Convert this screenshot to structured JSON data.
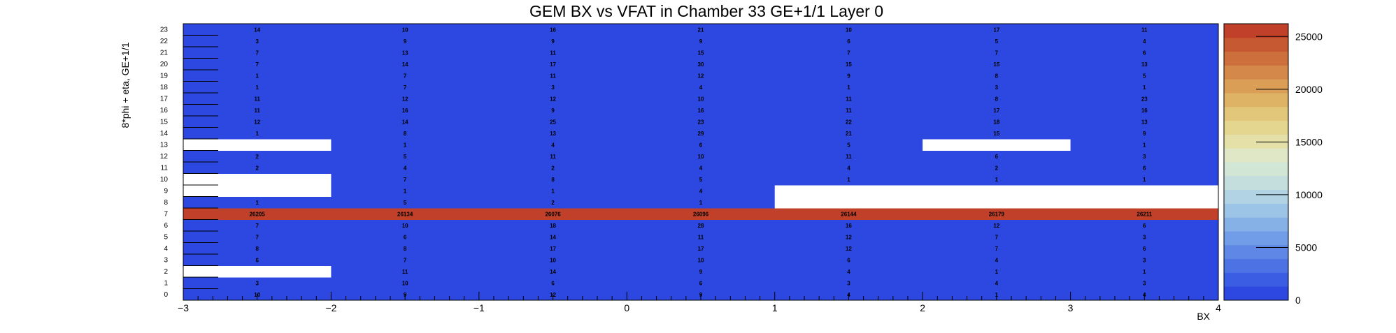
{
  "chart_data": {
    "type": "heatmap",
    "title": "GEM BX vs VFAT in Chamber 33 GE+1/1 Layer 0",
    "xlabel": "BX",
    "ylabel": "8*phi + eta, GE+1/1",
    "xlim": [
      -3,
      4
    ],
    "ylim": [
      0,
      24
    ],
    "x_ticks": [
      -3,
      -2,
      -1,
      0,
      1,
      2,
      3,
      4
    ],
    "x_tick_labels": [
      "−3",
      "−2",
      "−1",
      "0",
      "1",
      "2",
      "3",
      "4"
    ],
    "y_tick_labels": [
      "0",
      "1",
      "2",
      "3",
      "4",
      "5",
      "6",
      "7",
      "8",
      "9",
      "10",
      "11",
      "12",
      "13",
      "14",
      "15",
      "16",
      "17",
      "18",
      "19",
      "20",
      "21",
      "22",
      "23"
    ],
    "zlim": [
      0,
      26211
    ],
    "colorbar_ticks": [
      0,
      5000,
      10000,
      15000,
      20000,
      25000
    ],
    "colorbar_tick_labels": [
      "0",
      "5000",
      "10000",
      "15000",
      "20000",
      "25000"
    ],
    "x_bins": [
      -3,
      -2,
      -1,
      0,
      1,
      2,
      3
    ],
    "grid": false,
    "cells": [
      [
        10,
        9,
        12,
        9,
        4,
        1,
        4
      ],
      [
        3,
        10,
        6,
        6,
        3,
        4,
        3
      ],
      [
        null,
        11,
        14,
        9,
        4,
        1,
        1
      ],
      [
        6,
        7,
        10,
        10,
        6,
        4,
        3
      ],
      [
        8,
        8,
        17,
        17,
        12,
        7,
        6
      ],
      [
        7,
        6,
        14,
        11,
        12,
        7,
        3
      ],
      [
        7,
        10,
        18,
        28,
        16,
        12,
        6
      ],
      [
        26205,
        26134,
        26076,
        26096,
        26144,
        26179,
        26211
      ],
      [
        1,
        5,
        2,
        1,
        null,
        null,
        null
      ],
      [
        null,
        1,
        1,
        4,
        null,
        null,
        null
      ],
      [
        null,
        7,
        8,
        5,
        1,
        1,
        1
      ],
      [
        2,
        4,
        2,
        4,
        4,
        2,
        6
      ],
      [
        2,
        5,
        11,
        10,
        11,
        6,
        3
      ],
      [
        null,
        1,
        4,
        6,
        5,
        null,
        1
      ],
      [
        1,
        8,
        13,
        29,
        21,
        15,
        9
      ],
      [
        12,
        14,
        25,
        23,
        22,
        18,
        13
      ],
      [
        11,
        16,
        9,
        16,
        11,
        17,
        16
      ],
      [
        11,
        12,
        12,
        10,
        11,
        8,
        23
      ],
      [
        1,
        7,
        3,
        4,
        1,
        3,
        1
      ],
      [
        1,
        7,
        11,
        12,
        9,
        8,
        5
      ],
      [
        7,
        14,
        17,
        30,
        15,
        15,
        13
      ],
      [
        7,
        13,
        11,
        15,
        7,
        7,
        6
      ],
      [
        3,
        9,
        9,
        9,
        6,
        5,
        4
      ],
      [
        14,
        10,
        16,
        21,
        10,
        17,
        11
      ]
    ],
    "colors": {
      "low": "#2d48e0",
      "high": "#c0402a",
      "empty": "#ffffff",
      "label": "#000000"
    },
    "palette": [
      "#2d48e0",
      "#3b5de3",
      "#4c72e4",
      "#5f87e6",
      "#719ce8",
      "#86b1e6",
      "#9cc4e6",
      "#b1d3e3",
      "#c3dedd",
      "#d2e6d6",
      "#dfe7c7",
      "#e4e0a8",
      "#e4d58f",
      "#e2c67a",
      "#dfb366",
      "#da9e57",
      "#d4884a",
      "#cd6f3d",
      "#c65832",
      "#c0402a"
    ]
  }
}
